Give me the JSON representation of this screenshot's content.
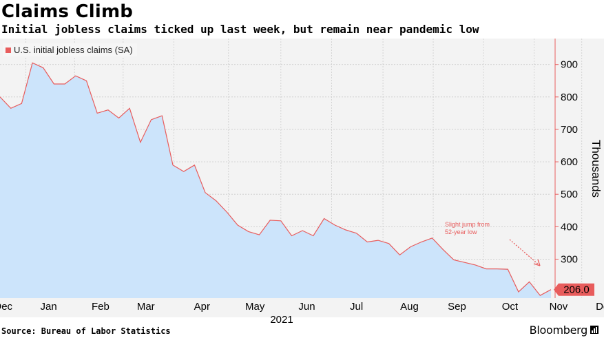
{
  "header": {
    "title": "Claims Climb",
    "subtitle": "Initial jobless claims ticked up last week, but remain near pandemic low"
  },
  "legend": {
    "label": "U.S. initial jobless claims (SA)"
  },
  "footer": {
    "source": "Source: Bureau of Labor Statistics",
    "brand": "Bloomberg"
  },
  "colors": {
    "area_fill": "#cce4fb",
    "line": "#e85c5c",
    "accent": "#e85c5c",
    "gridline": "#cccccc"
  },
  "chart_data": {
    "type": "area",
    "title": "Claims Climb",
    "subtitle": "Initial jobless claims ticked up last week, but remain near pandemic low",
    "ylabel": "Thousands",
    "ylim": [
      180,
      980
    ],
    "yticks": [
      300,
      400,
      500,
      600,
      700,
      800,
      900
    ],
    "ytick_labels": [
      "300",
      "400",
      "500",
      "600",
      "700",
      "800",
      "900"
    ],
    "year_label": "2021",
    "months": [
      {
        "label": "Dec",
        "week": 0.3
      },
      {
        "label": "Jan",
        "week": 4.5
      },
      {
        "label": "Feb",
        "week": 9.3
      },
      {
        "label": "Mar",
        "week": 13.5
      },
      {
        "label": "Apr",
        "week": 18.7
      },
      {
        "label": "May",
        "week": 23.6
      },
      {
        "label": "Jun",
        "week": 28.4
      },
      {
        "label": "Jul",
        "week": 33.0
      },
      {
        "label": "Aug",
        "week": 37.9
      },
      {
        "label": "Sep",
        "week": 42.3
      },
      {
        "label": "Oct",
        "week": 47.2
      },
      {
        "label": "Nov",
        "week": 51.7
      },
      {
        "label": "Dec",
        "week": 56.0
      }
    ],
    "series": [
      {
        "name": "U.S. initial jobless claims (SA)",
        "values": [
          800,
          765,
          780,
          905,
          890,
          840,
          840,
          865,
          850,
          750,
          760,
          735,
          765,
          660,
          730,
          742,
          590,
          570,
          590,
          505,
          480,
          445,
          405,
          385,
          375,
          420,
          418,
          372,
          388,
          372,
          425,
          405,
          390,
          380,
          353,
          358,
          348,
          313,
          338,
          353,
          365,
          330,
          298,
          290,
          282,
          270,
          270,
          269,
          199,
          230,
          188,
          206
        ]
      }
    ],
    "last_value_label": "206.0",
    "annotation": {
      "text_line1": "Slight jump from",
      "text_line2": "52-year low"
    }
  }
}
